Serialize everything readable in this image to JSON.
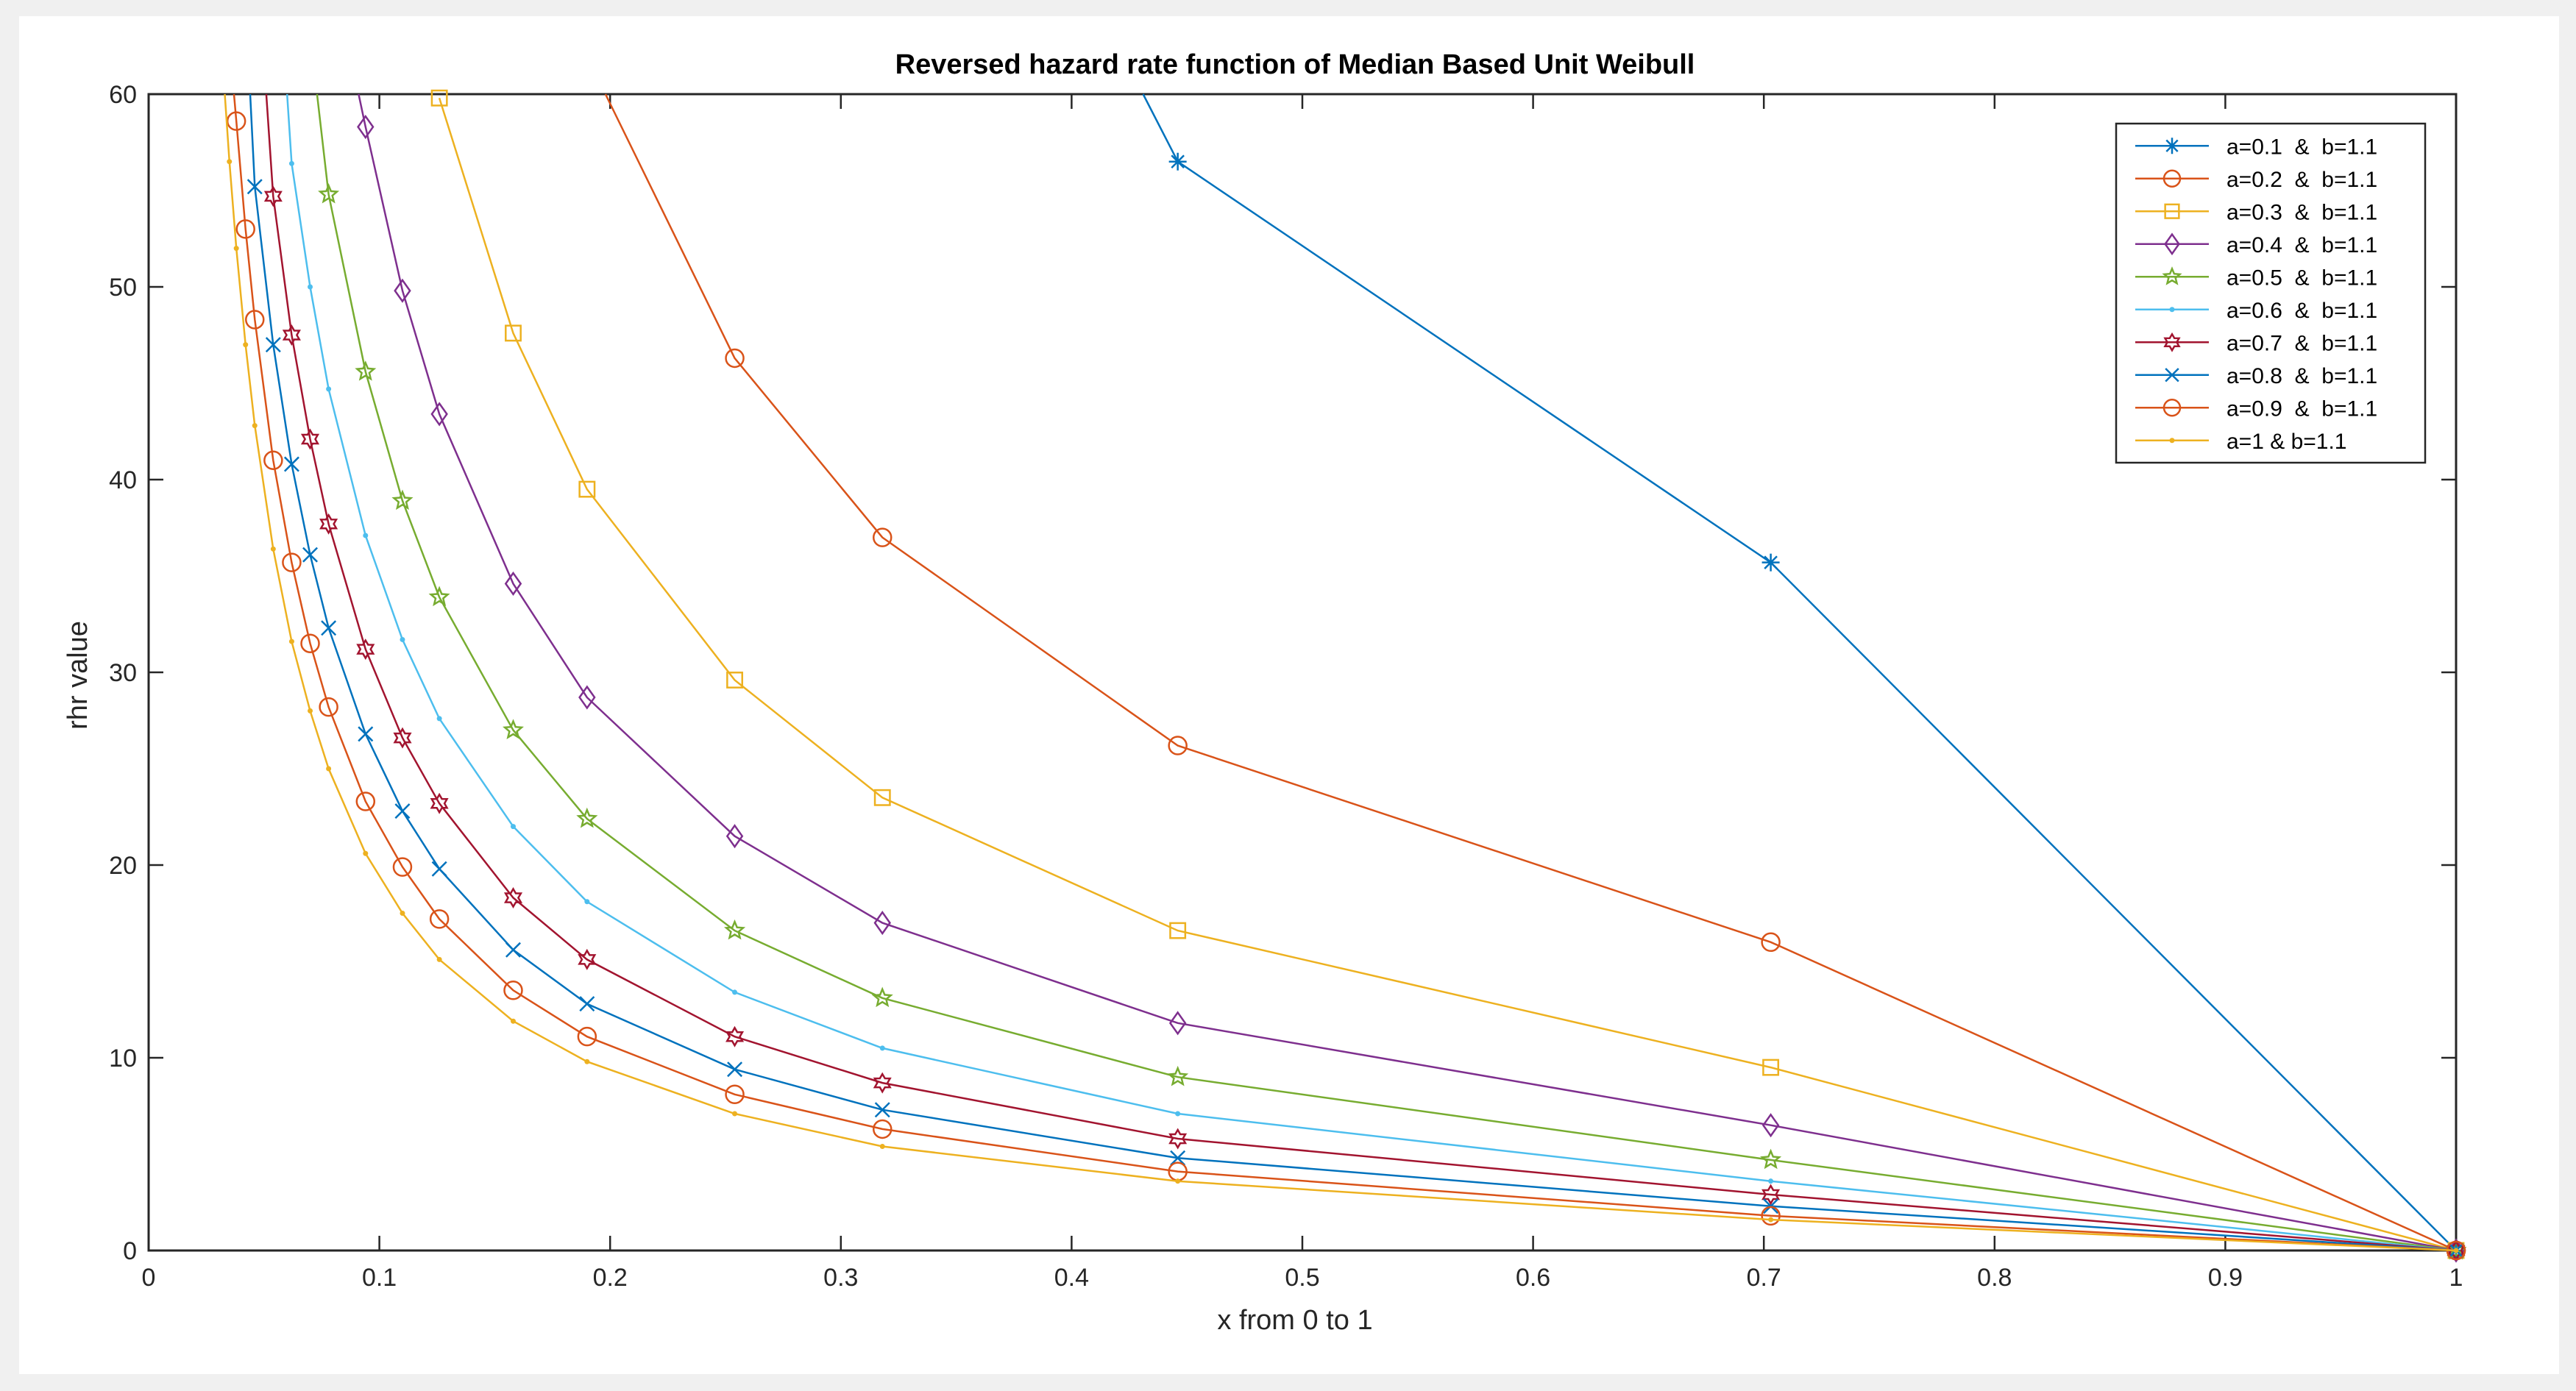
{
  "figure": {
    "background": "#f0f0f0",
    "axes_background": "#ffffff"
  },
  "chart_data": {
    "type": "line",
    "title": "Reversed hazard rate function of Median Based  Unit  Weibull",
    "xlabel": "x from 0 to 1",
    "ylabel": "rhr value",
    "xlim": [
      0,
      1
    ],
    "ylim": [
      0,
      60
    ],
    "xticks": [
      0,
      0.1,
      0.2,
      0.3,
      0.4,
      0.5,
      0.6,
      0.7,
      0.8,
      0.9,
      1
    ],
    "xtick_labels": [
      "0",
      "0.1",
      "0.2",
      "0.3",
      "0.4",
      "0.5",
      "0.6",
      "0.7",
      "0.8",
      "0.9",
      "1"
    ],
    "yticks": [
      0,
      10,
      20,
      30,
      40,
      50,
      60
    ],
    "ytick_labels": [
      "0",
      "10",
      "20",
      "30",
      "40",
      "50",
      "60"
    ],
    "grid": false,
    "legend_position": "top-right",
    "series": [
      {
        "name": "a=0.1  &  b=1.1",
        "color": "#0072bd",
        "marker": "asterisk",
        "x": [
          0.431,
          0.446,
          0.703,
          1.0
        ],
        "y": [
          60,
          56.5,
          35.7,
          0
        ]
      },
      {
        "name": "a=0.2  &  b=1.1",
        "color": "#d95319",
        "marker": "circle",
        "x": [
          0.198,
          0.254,
          0.318,
          0.446,
          0.703,
          1.0
        ],
        "y": [
          60,
          46.3,
          37.0,
          26.2,
          16.0,
          0
        ]
      },
      {
        "name": "a=0.3  &  b=1.1",
        "color": "#edb120",
        "marker": "square",
        "x": [
          0.126,
          0.158,
          0.19,
          0.254,
          0.318,
          0.446,
          0.703,
          1.0
        ],
        "y": [
          59.8,
          47.6,
          39.5,
          29.6,
          23.5,
          16.6,
          9.5,
          0
        ]
      },
      {
        "name": "a=0.4  &  b=1.1",
        "color": "#7e2f8e",
        "marker": "diamond",
        "x": [
          0.091,
          0.094,
          0.11,
          0.126,
          0.158,
          0.19,
          0.254,
          0.318,
          0.446,
          0.703,
          1.0
        ],
        "y": [
          60,
          58.3,
          49.8,
          43.4,
          34.6,
          28.7,
          21.5,
          17.0,
          11.8,
          6.5,
          0
        ]
      },
      {
        "name": "a=0.5  &  b=1.1",
        "color": "#77ac30",
        "marker": "pentagram",
        "x": [
          0.073,
          0.078,
          0.094,
          0.11,
          0.126,
          0.158,
          0.19,
          0.254,
          0.318,
          0.446,
          0.703,
          1.0
        ],
        "y": [
          60,
          54.8,
          45.6,
          38.9,
          33.9,
          27.0,
          22.4,
          16.6,
          13.1,
          9.0,
          4.7,
          0
        ]
      },
      {
        "name": "a=0.6  &  b=1.1",
        "color": "#4dbeee",
        "marker": "point",
        "x": [
          0.06,
          0.062,
          0.07,
          0.078,
          0.094,
          0.11,
          0.126,
          0.158,
          0.19,
          0.254,
          0.318,
          0.446,
          0.703,
          1.0
        ],
        "y": [
          60,
          56.4,
          50.0,
          44.7,
          37.1,
          31.7,
          27.6,
          22.0,
          18.1,
          13.4,
          10.5,
          7.1,
          3.6,
          0
        ]
      },
      {
        "name": "a=0.7  &  b=1.1",
        "color": "#a2142f",
        "marker": "hexagram",
        "x": [
          0.051,
          0.054,
          0.062,
          0.07,
          0.078,
          0.094,
          0.11,
          0.126,
          0.158,
          0.19,
          0.254,
          0.318,
          0.446,
          0.703,
          1.0
        ],
        "y": [
          60,
          54.7,
          47.5,
          42.1,
          37.7,
          31.2,
          26.6,
          23.2,
          18.3,
          15.1,
          11.1,
          8.7,
          5.8,
          2.9,
          0
        ]
      },
      {
        "name": "a=0.8  &  b=1.1",
        "color": "#0072bd",
        "marker": "x",
        "x": [
          0.044,
          0.046,
          0.054,
          0.062,
          0.07,
          0.078,
          0.094,
          0.11,
          0.126,
          0.158,
          0.19,
          0.254,
          0.318,
          0.446,
          0.703,
          1.0
        ],
        "y": [
          60,
          55.2,
          47.0,
          40.8,
          36.1,
          32.3,
          26.8,
          22.8,
          19.8,
          15.6,
          12.8,
          9.4,
          7.3,
          4.8,
          2.3,
          0
        ]
      },
      {
        "name": "a=0.9  &  b=1.1",
        "color": "#d95319",
        "marker": "circle",
        "x": [
          0.037,
          0.038,
          0.042,
          0.046,
          0.054,
          0.062,
          0.07,
          0.078,
          0.094,
          0.11,
          0.126,
          0.158,
          0.19,
          0.254,
          0.318,
          0.446,
          0.703,
          1.0
        ],
        "y": [
          60,
          58.6,
          53.0,
          48.3,
          41.0,
          35.7,
          31.5,
          28.2,
          23.3,
          19.9,
          17.2,
          13.5,
          11.1,
          8.1,
          6.3,
          4.1,
          1.8,
          0
        ]
      },
      {
        "name": "a=1 & b=1.1",
        "color": "#edb120",
        "marker": "point",
        "x": [
          0.033,
          0.035,
          0.038,
          0.042,
          0.046,
          0.054,
          0.062,
          0.07,
          0.078,
          0.094,
          0.11,
          0.126,
          0.158,
          0.19,
          0.254,
          0.318,
          0.446,
          0.703,
          1.0
        ],
        "y": [
          60,
          56.5,
          52.0,
          47.0,
          42.8,
          36.4,
          31.6,
          28.0,
          25.0,
          20.6,
          17.5,
          15.1,
          11.9,
          9.8,
          7.1,
          5.4,
          3.6,
          1.6,
          0
        ]
      }
    ]
  }
}
